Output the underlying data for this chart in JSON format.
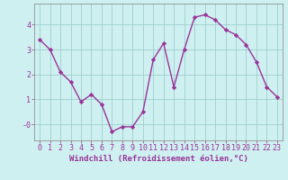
{
  "x": [
    0,
    1,
    2,
    3,
    4,
    5,
    6,
    7,
    8,
    9,
    10,
    11,
    12,
    13,
    14,
    15,
    16,
    17,
    18,
    19,
    20,
    21,
    22,
    23
  ],
  "y": [
    3.4,
    3.0,
    2.1,
    1.7,
    0.9,
    1.2,
    0.8,
    -0.3,
    -0.1,
    -0.1,
    0.5,
    2.6,
    3.25,
    1.5,
    3.0,
    4.3,
    4.4,
    4.2,
    3.8,
    3.6,
    3.2,
    2.5,
    1.5,
    1.1
  ],
  "line_color": "#993399",
  "marker": "D",
  "marker_size": 2.2,
  "bg_color": "#cff0f0",
  "grid_color": "#9ecece",
  "xlabel": "Windchill (Refroidissement éolien,°C)",
  "yticks": [
    0,
    1,
    2,
    3,
    4
  ],
  "ytick_labels": [
    "-0",
    "1",
    "2",
    "3",
    "4"
  ],
  "xlim": [
    -0.5,
    23.5
  ],
  "ylim": [
    -0.65,
    4.85
  ],
  "xlabel_fontsize": 6.5,
  "tick_fontsize": 6.0,
  "line_width": 1.0
}
